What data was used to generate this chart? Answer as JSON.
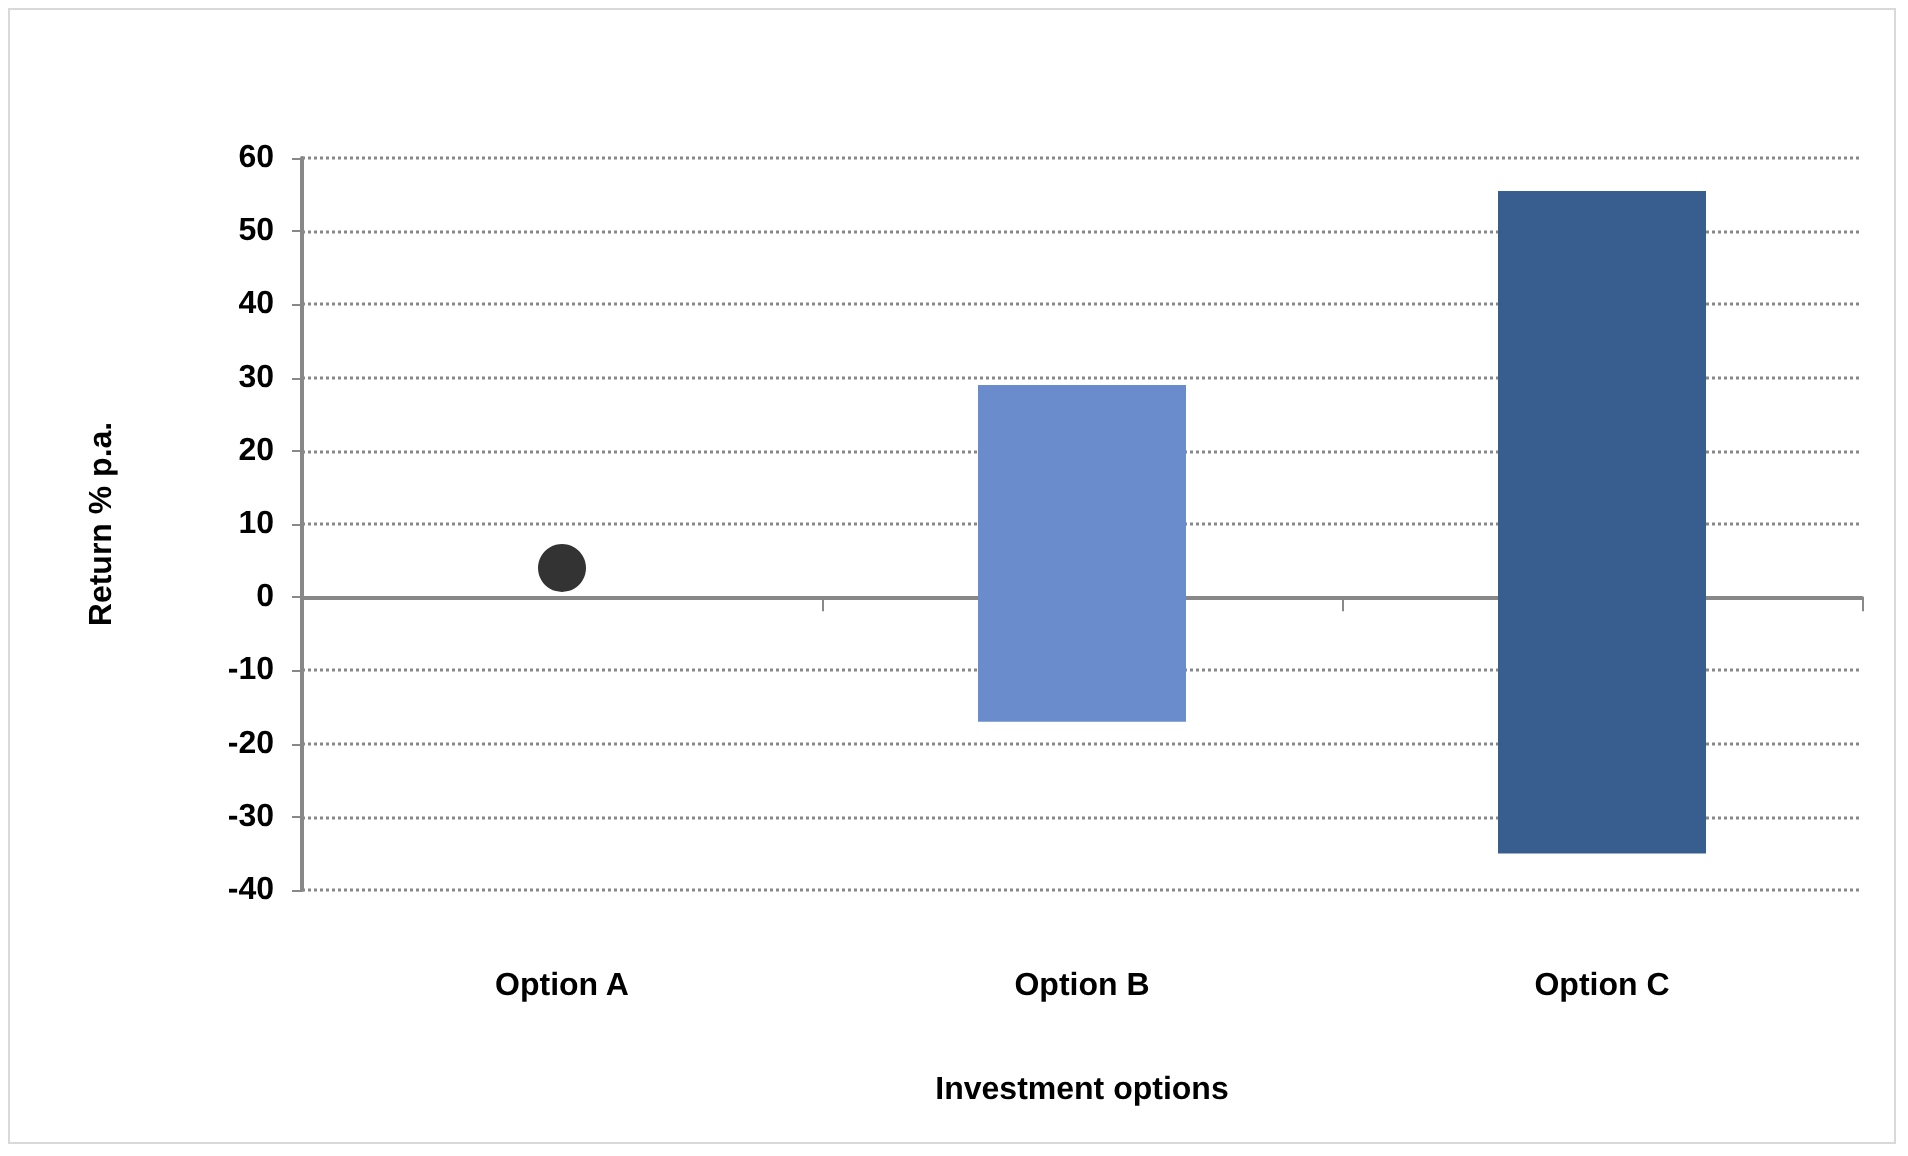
{
  "chart_data": {
    "type": "bar",
    "xlabel": "Investment options",
    "ylabel": "Return % p.a.",
    "categories": [
      "Option A",
      "Option B",
      "Option C"
    ],
    "ylim": [
      -40,
      60
    ],
    "yticks": [
      -40,
      -30,
      -20,
      -10,
      0,
      10,
      20,
      30,
      40,
      50,
      60
    ],
    "grid": "y",
    "series": [
      {
        "values": [
          null,
          46,
          90.5
        ],
        "base": [
          null,
          -17,
          -35
        ],
        "colors": [
          null,
          "#6a8ccc",
          "#375e8f"
        ]
      },
      {
        "type": "scatter",
        "x": [
          "Option A"
        ],
        "values": [
          4
        ],
        "color": "#000000",
        "marker": "circle"
      }
    ]
  }
}
